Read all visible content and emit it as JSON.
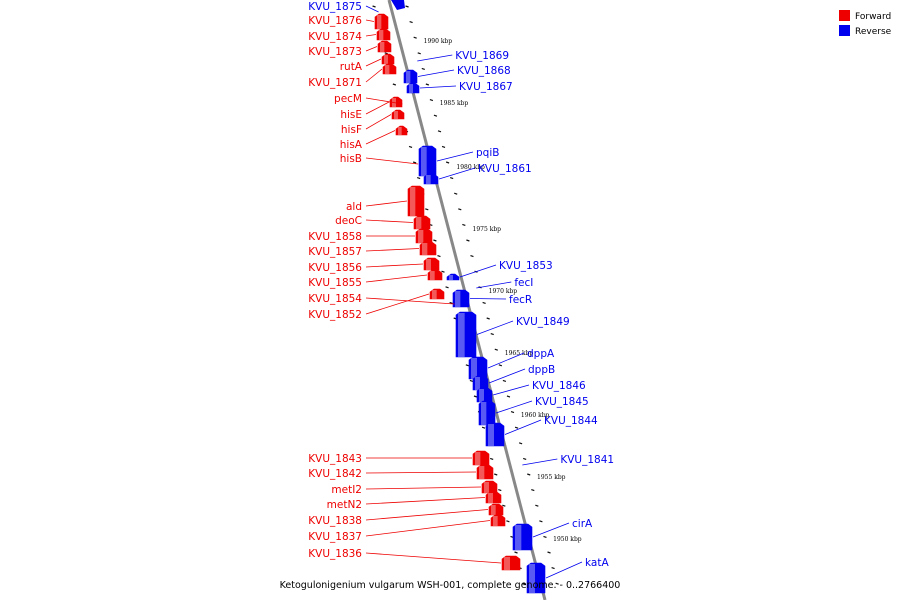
{
  "caption": "Ketogulonigenium vulgarum WSH-001, complete genome. - 0..2766400",
  "legend": [
    {
      "label": "Forward",
      "color": "#ee0000"
    },
    {
      "label": "Reverse",
      "color": "#0000ee"
    }
  ],
  "colors": {
    "forward": "#ee0000",
    "reverse": "#0000ee",
    "backbone": "#888888"
  },
  "tick_labels": [
    "1990 kbp",
    "1985 kbp",
    "1980 kbp",
    "1975 kbp",
    "1970 kbp",
    "1965 kbp",
    "1960 kbp",
    "1955 kbp",
    "1950 kbp"
  ],
  "genes_forward": [
    "KVU_1875",
    "KVU_1876",
    "KVU_1874",
    "KVU_1873",
    "rutA",
    "KVU_1871",
    "pecM",
    "hisE",
    "hisF",
    "hisA",
    "hisB",
    "ald",
    "deoC",
    "KVU_1858",
    "KVU_1857",
    "KVU_1856",
    "KVU_1855",
    "KVU_1854",
    "KVU_1852",
    "KVU_1843",
    "KVU_1842",
    "metI2",
    "metN2",
    "KVU_1838",
    "KVU_1837",
    "KVU_1836"
  ],
  "genes_reverse": [
    "KVU_1869",
    "KVU_1868",
    "KVU_1867",
    "pqiB",
    "KVU_1861",
    "KVU_1853",
    "fecI",
    "fecR",
    "KVU_1849",
    "dppA",
    "dppB",
    "KVU_1846",
    "KVU_1845",
    "KVU_1844",
    "KVU_1841",
    "cirA",
    "katA"
  ]
}
